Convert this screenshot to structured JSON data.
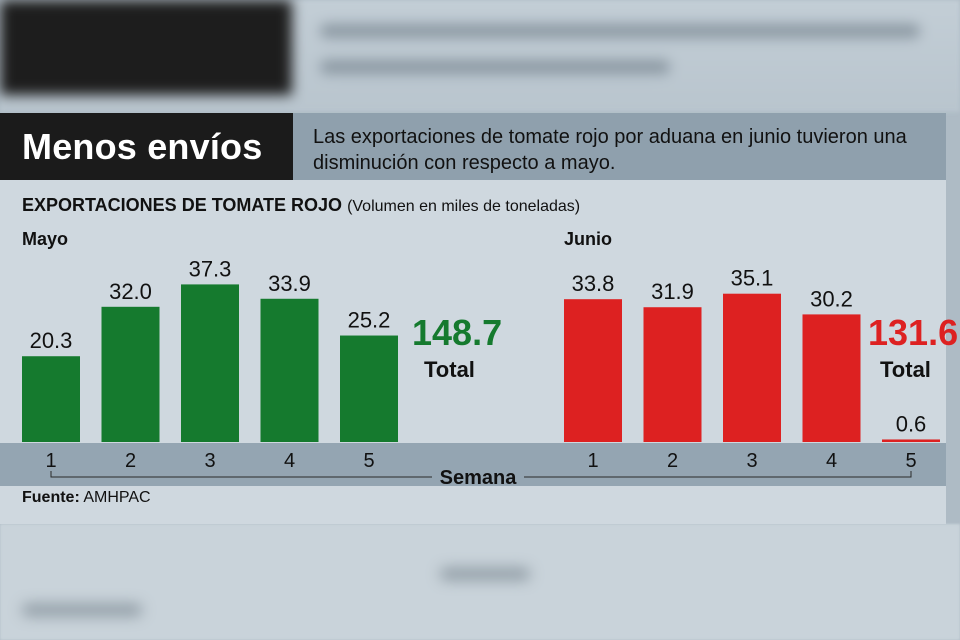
{
  "header": {
    "title": "Menos envíos",
    "description": "Las exportaciones de tomate rojo por aduana en junio tuvieron una disminución con respecto a mayo."
  },
  "chart_data": {
    "type": "bar",
    "title": "EXPORTACIONES DE TOMATE ROJO",
    "subtitle": "(Volumen en miles de toneladas)",
    "xlabel": "Semana",
    "ylabel": "",
    "ylim": [
      0,
      40
    ],
    "panels": [
      {
        "name": "Mayo",
        "categories": [
          "1",
          "2",
          "3",
          "4",
          "5"
        ],
        "values": [
          20.3,
          32.0,
          37.3,
          33.9,
          25.2
        ],
        "labels": [
          "20.3",
          "32.0",
          "37.3",
          "33.9",
          "25.2"
        ],
        "total": "148.7",
        "total_label": "Total",
        "color": "#157a2e"
      },
      {
        "name": "Junio",
        "categories": [
          "1",
          "2",
          "3",
          "4",
          "5"
        ],
        "values": [
          33.8,
          31.9,
          35.1,
          30.2,
          0.6
        ],
        "labels": [
          "33.8",
          "31.9",
          "35.1",
          "30.2",
          "0.6"
        ],
        "total": "131.6",
        "total_label": "Total",
        "color": "#dd2121"
      }
    ]
  },
  "footer": {
    "source_label": "Fuente:",
    "source_value": "AMHPAC"
  }
}
